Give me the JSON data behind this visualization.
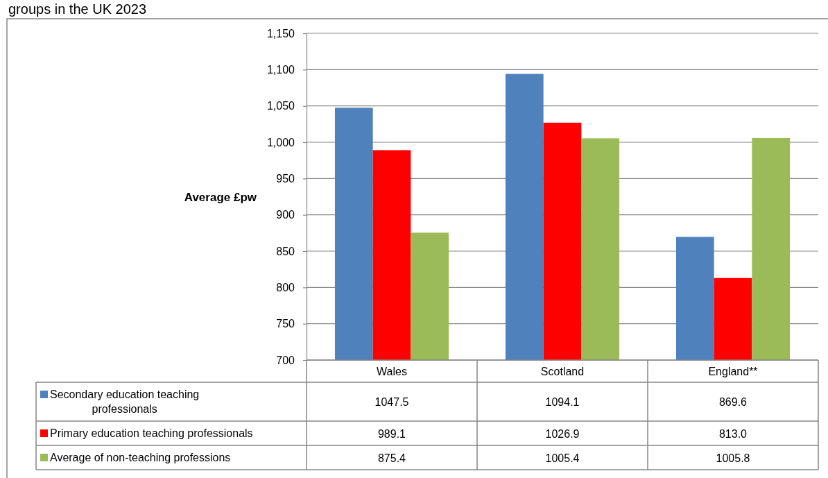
{
  "chart_data": {
    "type": "bar",
    "title": "groups in the UK 2023",
    "ylabel": "Average £pw",
    "categories": [
      "Wales",
      "Scotland",
      "England**"
    ],
    "series": [
      {
        "name": "Secondary education teaching professionals",
        "color": "#4f81bd",
        "values": [
          1047.5,
          1094.1,
          869.6
        ],
        "value_labels": [
          "1047.5",
          "1094.1",
          "869.6"
        ]
      },
      {
        "name": "Primary education teaching professionals",
        "color": "#ff0000",
        "values": [
          989.1,
          1026.9,
          813.0
        ],
        "value_labels": [
          "989.1",
          "1026.9",
          "813.0"
        ]
      },
      {
        "name": "Average of non-teaching professions",
        "color": "#9bbb59",
        "values": [
          875.4,
          1005.4,
          1005.8
        ],
        "value_labels": [
          "875.4",
          "1005.4",
          "1005.8"
        ]
      }
    ],
    "ylim": [
      700,
      1150
    ],
    "yticks": [
      700,
      750,
      800,
      850,
      900,
      950,
      {
        "value": 1000,
        "label": "1,000"
      },
      {
        "value": 1050,
        "label": "1,050"
      },
      {
        "value": 1100,
        "label": "1,100"
      },
      {
        "value": 1150,
        "label": "1,150"
      }
    ],
    "grid": "y",
    "legend": "bottom"
  }
}
